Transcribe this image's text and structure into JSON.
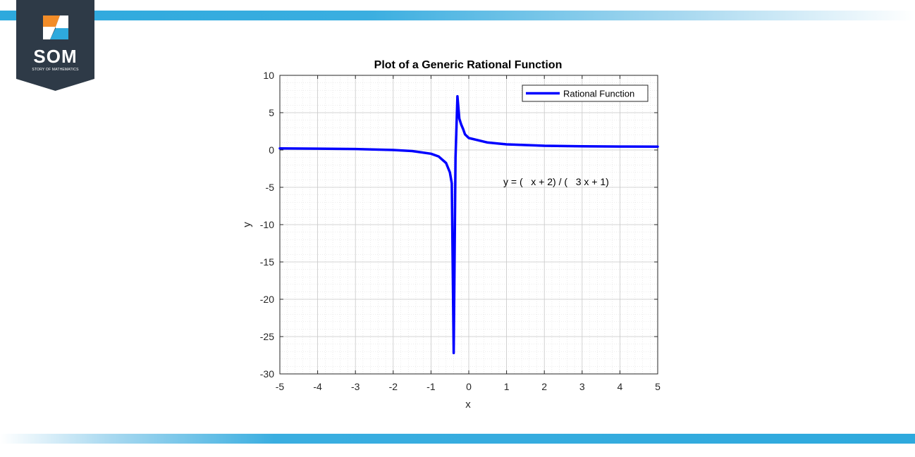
{
  "brand": {
    "name": "SOM",
    "tagline": "STORY OF MATHEMATICS",
    "colors": {
      "dark": "#2e3a47",
      "orange": "#f28c28",
      "blue": "#2ea9dd"
    }
  },
  "chart_data": {
    "type": "line",
    "title": "Plot of a Generic Rational Function",
    "xlabel": "x",
    "ylabel": "y",
    "xlim": [
      -5,
      5
    ],
    "ylim": [
      -30,
      10
    ],
    "xticks": [
      -5,
      -4,
      -3,
      -2,
      -1,
      0,
      1,
      2,
      3,
      4,
      5
    ],
    "xtick_labels": [
      "-5",
      "-4",
      "-3",
      "-2",
      "-1",
      "0",
      "1",
      "2",
      "3",
      "4",
      "5"
    ],
    "yticks": [
      -30,
      -25,
      -20,
      -15,
      -10,
      -5,
      0,
      5,
      10
    ],
    "ytick_labels": [
      "-30",
      "-25",
      "-20",
      "-15",
      "-10",
      "-5",
      "0",
      "5",
      "10"
    ],
    "grid": true,
    "minor_grid": true,
    "legend": "top-right",
    "annotation": "y = (   x + 2) / (   3 x + 1)",
    "series": [
      {
        "name": "Rational Function",
        "color": "#0000ff",
        "x": [
          -5,
          -4,
          -3,
          -2,
          -1.5,
          -1,
          -0.8,
          -0.6,
          -0.5,
          -0.45,
          -0.4,
          -0.35,
          -0.3,
          -0.25,
          -0.2,
          -0.15,
          -0.1,
          0,
          0.5,
          1,
          2,
          3,
          4,
          5
        ],
        "y": [
          0.21,
          0.18,
          0.13,
          0.0,
          -0.14,
          -0.5,
          -0.86,
          -1.75,
          -3.0,
          -4.46,
          -27.2,
          -1.0,
          7.2,
          4.2,
          3.4,
          2.8,
          2.1,
          1.6,
          1.0,
          0.75,
          0.57,
          0.5,
          0.46,
          0.44
        ]
      }
    ]
  }
}
